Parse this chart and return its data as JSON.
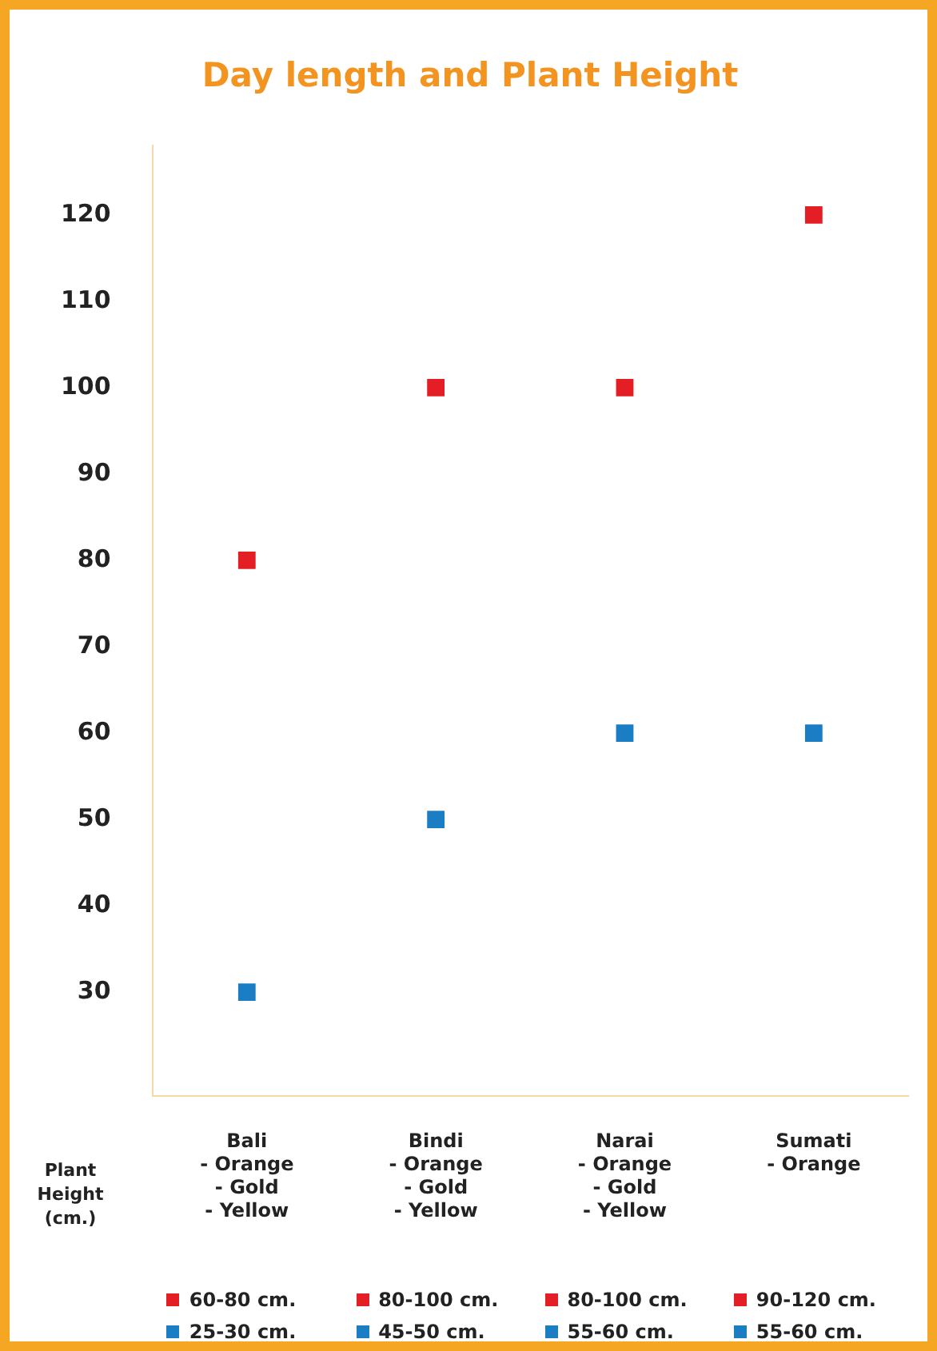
{
  "chart_data": {
    "type": "scatter",
    "title": "Day length and Plant Height",
    "ylabel": "Plant Height (cm.)",
    "categories": [
      "Bali\n- Orange\n- Gold\n- Yellow",
      "Bindi\n- Orange\n- Gold\n- Yellow",
      "Narai\n- Orange\n- Gold\n- Yellow",
      "Sumati\n- Orange"
    ],
    "series": [
      {
        "color": "#e31e24",
        "values": [
          80,
          100,
          100,
          120
        ],
        "value_labels": [
          "60-80 cm.",
          "80-100 cm.",
          "80-100 cm.",
          "90-120 cm."
        ]
      },
      {
        "color": "#1b7dc3",
        "values": [
          30,
          50,
          60,
          60
        ],
        "value_labels": [
          "25-30 cm.",
          "45-50 cm.",
          "55-60 cm.",
          "55-60 cm."
        ]
      }
    ],
    "ylim": [
      18,
      128
    ],
    "yticks": [
      30,
      40,
      50,
      60,
      70,
      80,
      90,
      100,
      110,
      120
    ],
    "grid": false,
    "legend": false,
    "marker": "square"
  }
}
